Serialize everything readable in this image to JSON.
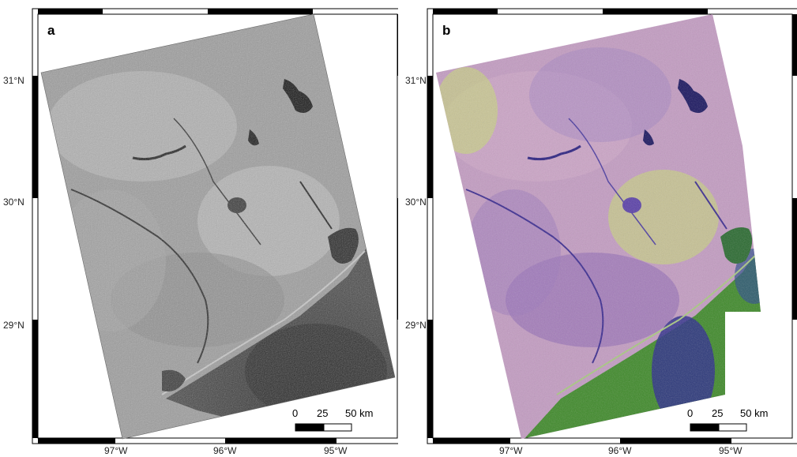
{
  "panels": [
    {
      "letter": "a",
      "kind": "grayscale-radar-image",
      "colors": {
        "water": "#141414",
        "land_light": "#c8c8c8",
        "land_mid": "#8e8e8e",
        "sea": "#3a3a3a"
      }
    },
    {
      "letter": "b",
      "kind": "false-color-composite-image",
      "colors": {
        "water": "#1a1660",
        "land_pink": "#c9a0c4",
        "land_purple": "#8a64b4",
        "veg_green": "#c8e070",
        "sea_green": "#3f8a2a",
        "sea_blue": "#2a2a8a"
      }
    }
  ],
  "latitude_labels": [
    "31°N",
    "30°N",
    "29°N"
  ],
  "longitude_labels": [
    "97°W",
    "96°W",
    "95°W"
  ],
  "scale_bar": {
    "ticks": [
      "0",
      "25",
      "50 km"
    ]
  }
}
